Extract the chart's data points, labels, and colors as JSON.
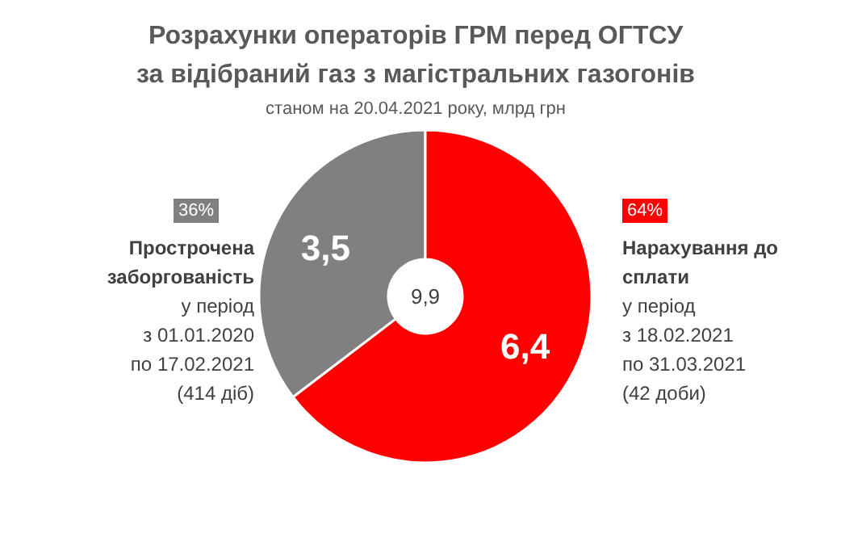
{
  "chart_data": {
    "type": "donut",
    "title": "Розрахунки операторів ГРМ перед ОГТСУ\nза відібраний газ з магістральних газогонів",
    "subtitle": "станом на 20.04.2021 року, млрд грн",
    "categories": [
      "Прострочена заборгованість",
      "Нарахування до сплати"
    ],
    "values": [
      3.5,
      6.4
    ],
    "colors": [
      "#808080",
      "#ff0000"
    ],
    "legend": "top right",
    "value_labels": [
      "3,5",
      "6,4"
    ],
    "annotations": [
      "9,9",
      "36%",
      "у період\nз 01.01.2020\nпо 17.02.2021\n(414 діб)",
      "64%",
      "у період\nз 18.02.2021\nпо 31.03.2021\n(42 доби)"
    ]
  }
}
